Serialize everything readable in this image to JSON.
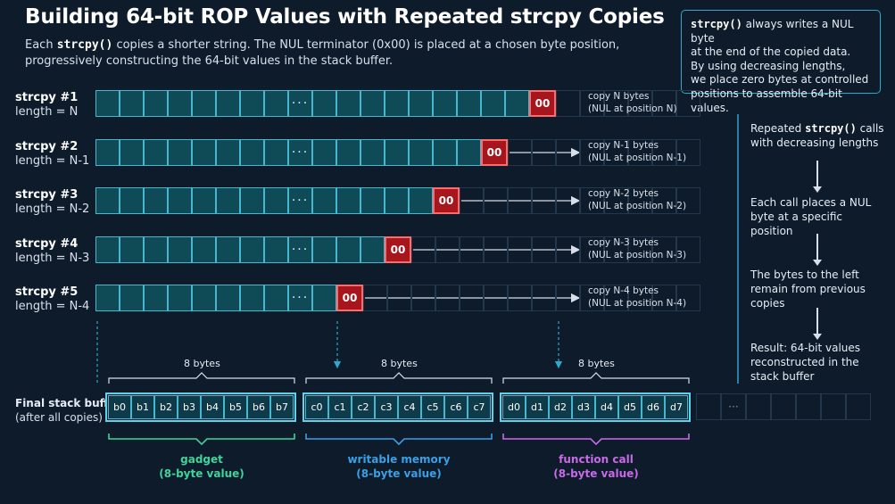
{
  "header": {
    "title": "Building 64-bit ROP Values with Repeated strcpy Copies",
    "subtitle_pre": "Each ",
    "subtitle_code": "strcpy()",
    "subtitle_post": " copies a shorter string. The NUL terminator (0x00) is placed at a chosen byte position, progressively constructing the 64-bit values in the stack buffer."
  },
  "note": {
    "code": "strcpy()",
    "line1": " always writes a NUL byte",
    "line2": "at the end of the copied data.",
    "line3": "By using decreasing lengths,",
    "line4": "we place zero bytes at controlled",
    "line5": "positions to assemble 64-bit values."
  },
  "rows": [
    {
      "label": "strcpy #1",
      "length": "length = N",
      "copy": "copy N bytes",
      "nul_pos": "(NUL at position N)",
      "nul": "00",
      "dots": "···"
    },
    {
      "label": "strcpy #2",
      "length": "length = N-1",
      "copy": "copy N-1 bytes",
      "nul_pos": "(NUL at position N-1)",
      "nul": "00",
      "dots": "···"
    },
    {
      "label": "strcpy #3",
      "length": "length = N-2",
      "copy": "copy N-2 bytes",
      "nul_pos": "(NUL at position N-2)",
      "nul": "00",
      "dots": "···"
    },
    {
      "label": "strcpy #4",
      "length": "length = N-3",
      "copy": "copy N-3 bytes",
      "nul_pos": "(NUL at position N-3)",
      "nul": "00",
      "dots": "···"
    },
    {
      "label": "strcpy #5",
      "length": "length = N-4",
      "copy": "copy N-4 bytes",
      "nul_pos": "(NUL at position N-4)",
      "nul": "00",
      "dots": "···"
    }
  ],
  "side": {
    "step1_pre": "Repeated ",
    "step1_code": "strcpy()",
    "step1_post": " calls with decreasing lengths",
    "step2": "Each call places a NUL byte at a specific position",
    "step3": "The bytes to the left remain from previous copies",
    "step4": "Result: 64-bit values reconstructed in the stack buffer"
  },
  "final": {
    "label": "Final stack buffer",
    "sublabel": "(after all copies)",
    "dots": "···",
    "groups": [
      {
        "bytes_label": "8 bytes",
        "name": "gadget",
        "desc": "(8-byte value)",
        "color": "#3ed49a",
        "bytes": [
          "b0",
          "b1",
          "b2",
          "b3",
          "b4",
          "b5",
          "b6",
          "b7"
        ]
      },
      {
        "bytes_label": "8 bytes",
        "name": "writable memory",
        "desc": "(8-byte value)",
        "color": "#3aa0e6",
        "bytes": [
          "c0",
          "c1",
          "c2",
          "c3",
          "c4",
          "c5",
          "c6",
          "c7"
        ]
      },
      {
        "bytes_label": "8 bytes",
        "name": "function call",
        "desc": "(8-byte value)",
        "color": "#c86ae8",
        "bytes": [
          "d0",
          "d1",
          "d2",
          "d3",
          "d4",
          "d5",
          "d6",
          "d7"
        ]
      }
    ]
  },
  "colors": {
    "background": "#0e1b2b",
    "cell_fill": "#0f4a57",
    "cell_border": "#47b7cf",
    "nul_fill": "#a8161d",
    "gadget": "#3ed49a",
    "writable": "#3aa0e6",
    "function": "#c86ae8"
  }
}
